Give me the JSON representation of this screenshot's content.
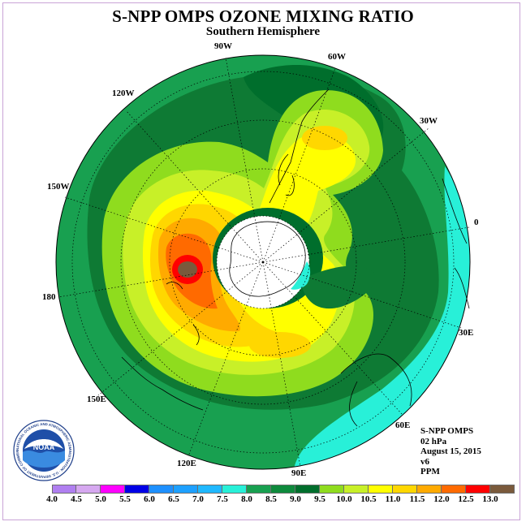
{
  "header": {
    "title": "S-NPP OMPS OZONE MIXING RATIO",
    "subtitle": "Southern Hemisphere"
  },
  "map": {
    "longitude_labels": [
      "90W",
      "60W",
      "30W",
      "0",
      "30E",
      "60E",
      "90E",
      "120E",
      "150E",
      "180",
      "150W",
      "120W"
    ]
  },
  "info": {
    "instrument": "S-NPP OMPS",
    "level": "02 hPa",
    "date": "August 15, 2015",
    "version": "v6",
    "units": "PPM"
  },
  "logo": {
    "text": "NOAA",
    "ring_text": "NATIONAL OCEANIC AND ATMOSPHERIC ADMINISTRATION · U.S. DEPARTMENT OF COMMERCE"
  },
  "colorbar": {
    "ticks": [
      "4.0",
      "4.5",
      "5.0",
      "5.5",
      "6.0",
      "6.5",
      "7.0",
      "7.5",
      "8.0",
      "8.5",
      "9.0",
      "9.5",
      "10.0",
      "10.5",
      "11.0",
      "11.5",
      "12.0",
      "12.5",
      "13.0"
    ],
    "colors": [
      "#b07ff0",
      "#d6a8f0",
      "#ff00ff",
      "#0000e6",
      "#1e90ff",
      "#1ea0ff",
      "#20b8ff",
      "#28f0d8",
      "#18a050",
      "#0e8a3c",
      "#006e2c",
      "#8fdc1e",
      "#c8f028",
      "#ffff00",
      "#ffd700",
      "#ffaa00",
      "#ff6a00",
      "#ff0000",
      "#7a5a3c"
    ]
  }
}
